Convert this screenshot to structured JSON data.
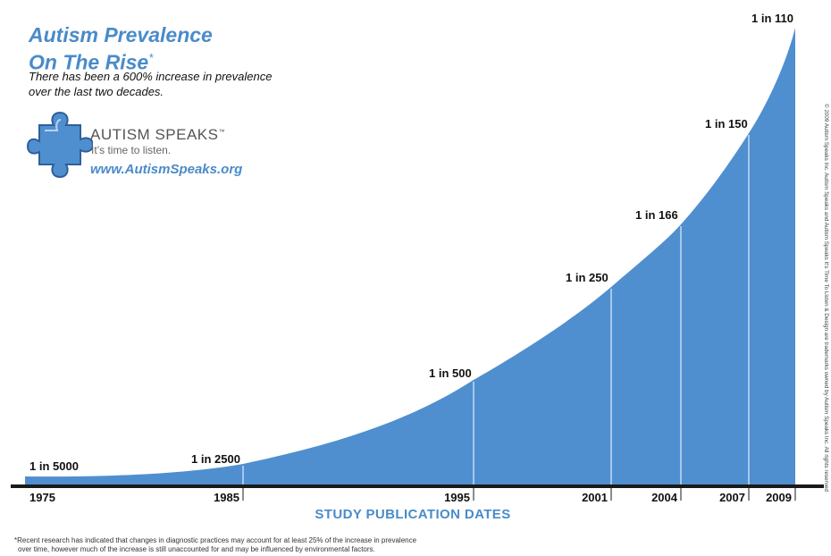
{
  "header": {
    "title_line1": "Autism Prevalence",
    "title_line2": "On The Rise",
    "title_mark": "*",
    "subtitle_line1": "There has been a 600% increase in prevalence",
    "subtitle_line2": "over the last two decades."
  },
  "brand": {
    "name": "AUTISM SPEAKS",
    "tm": "™",
    "tagline": "It’s time to listen.",
    "url": "www.AutismSpeaks.org"
  },
  "colors": {
    "area": "#4f8fd0",
    "accent": "#4a8bc9",
    "axis": "#1a1a1a"
  },
  "chart_data": {
    "type": "area",
    "xlabel": "STUDY PUBLICATION DATES",
    "points": [
      {
        "year": 1975,
        "label": "1 in 5000"
      },
      {
        "year": 1985,
        "label": "1 in 2500"
      },
      {
        "year": 1995,
        "label": "1 in 500"
      },
      {
        "year": 2001,
        "label": "1 in 250"
      },
      {
        "year": 2004,
        "label": "1 in 166"
      },
      {
        "year": 2007,
        "label": "1 in 150"
      },
      {
        "year": 2009,
        "label": "1 in 110"
      }
    ],
    "x_ticks": [
      "1975",
      "1985",
      "1995",
      "2001",
      "2004",
      "2007",
      "2009"
    ]
  },
  "footnote": {
    "line1": "*Recent research has indicated that changes in diagnostic practices may account for at least 25% of the increase in prevalence",
    "line2": "over time, however much of the increase is still unaccounted for and may be influenced by environmental factors."
  },
  "copyright": "© 2009 Autism Speaks Inc. Autism Speaks and Autism Speaks It’s Time To Listen & Design are trademarks owned by Autism Speaks Inc. All rights reserved"
}
